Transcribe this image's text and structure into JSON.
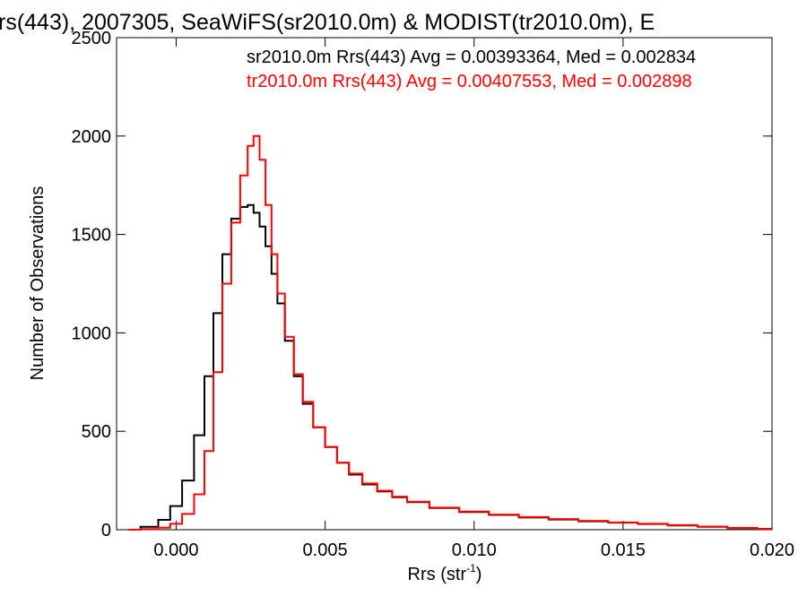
{
  "chart_data": {
    "type": "line",
    "title": "rs(443), 2007305, SeaWiFS(sr2010.0m) & MODIST(tr2010.0m), E",
    "xlabel_main": "Rrs (str",
    "xlabel_sup": "-1",
    "xlabel_end": ")",
    "ylabel": "Number of Observations",
    "xlim": [
      -0.002,
      0.02
    ],
    "ylim": [
      0,
      2500
    ],
    "x_ticks": [
      0.0,
      0.005,
      0.01,
      0.015,
      0.02
    ],
    "x_tick_labels": [
      "0.000",
      "0.005",
      "0.010",
      "0.015",
      "0.020"
    ],
    "y_ticks": [
      0,
      500,
      1000,
      1500,
      2000,
      2500
    ],
    "y_tick_labels": [
      "0",
      "500",
      "1000",
      "1500",
      "2000",
      "2500"
    ],
    "annotations": [
      {
        "text": "sr2010.0m Rrs(443) Avg = 0.00393364, Med = 0.002834",
        "color": "#000000"
      },
      {
        "text": "tr2010.0m Rrs(443) Avg = 0.00407553, Med = 0.002898",
        "color": "#ff0000"
      }
    ],
    "series": [
      {
        "color": "#000000",
        "x": [
          -0.0016,
          -0.0008,
          -0.0004,
          0.0,
          0.0004,
          0.0008,
          0.0011,
          0.0014,
          0.0017,
          0.002,
          0.0023,
          0.0025,
          0.0027,
          0.0029,
          0.0031,
          0.0033,
          0.0035,
          0.0038,
          0.0041,
          0.0044,
          0.0048,
          0.0052,
          0.0056,
          0.006,
          0.0065,
          0.007,
          0.0075,
          0.008,
          0.009,
          0.01,
          0.011,
          0.012,
          0.013,
          0.014,
          0.015,
          0.016,
          0.017,
          0.018,
          0.019,
          0.02
        ],
        "values": [
          0,
          15,
          50,
          120,
          250,
          480,
          780,
          1100,
          1400,
          1580,
          1640,
          1650,
          1610,
          1540,
          1440,
          1300,
          1150,
          960,
          780,
          640,
          520,
          420,
          340,
          280,
          230,
          195,
          165,
          140,
          110,
          90,
          75,
          62,
          52,
          43,
          36,
          29,
          22,
          15,
          8,
          4
        ]
      },
      {
        "color": "#ff0000",
        "x": [
          -0.0016,
          -0.0008,
          -0.0004,
          0.0,
          0.0004,
          0.0008,
          0.0011,
          0.0014,
          0.0017,
          0.002,
          0.0023,
          0.0025,
          0.0027,
          0.0029,
          0.0031,
          0.0033,
          0.0035,
          0.0038,
          0.0041,
          0.0044,
          0.0048,
          0.0052,
          0.0056,
          0.006,
          0.0065,
          0.007,
          0.0075,
          0.008,
          0.009,
          0.01,
          0.011,
          0.012,
          0.013,
          0.014,
          0.015,
          0.016,
          0.017,
          0.018,
          0.019,
          0.02
        ],
        "values": [
          0,
          3,
          10,
          30,
          80,
          180,
          400,
          800,
          1250,
          1560,
          1800,
          1950,
          2000,
          1880,
          1650,
          1400,
          1200,
          980,
          790,
          650,
          520,
          420,
          340,
          285,
          235,
          198,
          168,
          142,
          112,
          92,
          77,
          64,
          54,
          45,
          37,
          30,
          23,
          16,
          9,
          4
        ]
      }
    ]
  }
}
